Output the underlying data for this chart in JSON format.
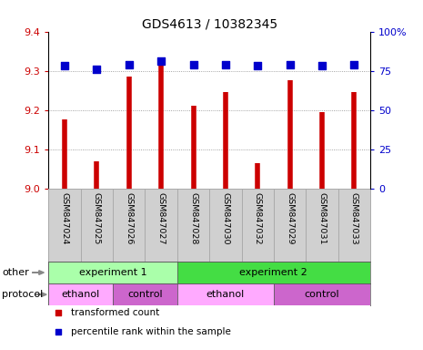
{
  "title": "GDS4613 / 10382345",
  "samples": [
    "GSM847024",
    "GSM847025",
    "GSM847026",
    "GSM847027",
    "GSM847028",
    "GSM847030",
    "GSM847032",
    "GSM847029",
    "GSM847031",
    "GSM847033"
  ],
  "transformed_count": [
    9.175,
    9.07,
    9.285,
    9.315,
    9.21,
    9.245,
    9.065,
    9.275,
    9.195,
    9.245
  ],
  "percentile_rank": [
    78,
    76,
    79,
    81,
    79,
    79,
    78,
    79,
    78,
    79
  ],
  "ylim_left": [
    9.0,
    9.4
  ],
  "ylim_right": [
    0,
    100
  ],
  "yticks_left": [
    9.0,
    9.1,
    9.2,
    9.3,
    9.4
  ],
  "yticks_right": [
    0,
    25,
    50,
    75,
    100
  ],
  "ytick_right_labels": [
    "0",
    "25",
    "50",
    "75",
    "100%"
  ],
  "bar_color": "#cc0000",
  "dot_color": "#0000cc",
  "grid_color": "#888888",
  "bg_color": "#ffffff",
  "tick_label_color_left": "#cc0000",
  "tick_label_color_right": "#0000cc",
  "sample_bg_color": "#d0d0d0",
  "sample_border_color": "#aaaaaa",
  "other_row": [
    {
      "label": "experiment 1",
      "start": 0,
      "end": 4,
      "color": "#aaffaa"
    },
    {
      "label": "experiment 2",
      "start": 4,
      "end": 10,
      "color": "#44dd44"
    }
  ],
  "protocol_row": [
    {
      "label": "ethanol",
      "start": 0,
      "end": 2,
      "color": "#ffaaff"
    },
    {
      "label": "control",
      "start": 2,
      "end": 4,
      "color": "#cc66cc"
    },
    {
      "label": "ethanol",
      "start": 4,
      "end": 7,
      "color": "#ffaaff"
    },
    {
      "label": "control",
      "start": 7,
      "end": 10,
      "color": "#cc66cc"
    }
  ],
  "legend_items": [
    {
      "label": "transformed count",
      "color": "#cc0000"
    },
    {
      "label": "percentile rank within the sample",
      "color": "#0000cc"
    }
  ],
  "row_label_other": "other",
  "row_label_protocol": "protocol",
  "arrow_color": "#888888"
}
